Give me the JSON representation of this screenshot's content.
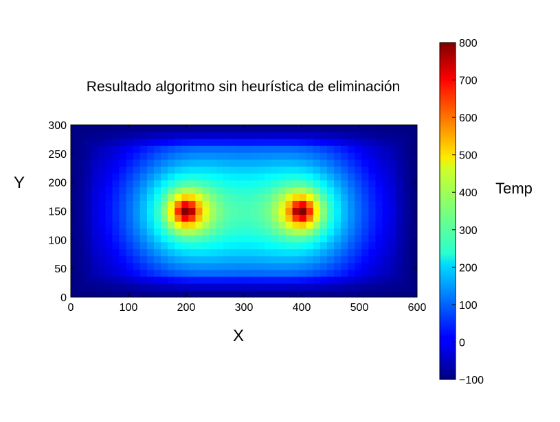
{
  "chart_data": {
    "type": "heatmap",
    "title": "Resultado algoritmo sin heurística de eliminación",
    "xlabel": "X",
    "ylabel": "Y",
    "colorbar_label": "Temp",
    "xlim": [
      0,
      600
    ],
    "ylim": [
      0,
      300
    ],
    "xticks": [
      "0",
      "100",
      "200",
      "300",
      "400",
      "500",
      "600"
    ],
    "yticks": [
      "0",
      "50",
      "100",
      "150",
      "200",
      "250",
      "300"
    ],
    "colorbar_range": [
      -100,
      800
    ],
    "colorbar_ticks": [
      "−100",
      "0",
      "100",
      "200",
      "300",
      "400",
      "500",
      "600",
      "700",
      "800"
    ],
    "colormap": "jet",
    "grid": false,
    "grid_cells": [
      50,
      25
    ],
    "hot_spots": [
      {
        "x": 200,
        "y": 150,
        "value": 800
      },
      {
        "x": 400,
        "y": 150,
        "value": 800
      }
    ],
    "boundary_value": -100
  }
}
